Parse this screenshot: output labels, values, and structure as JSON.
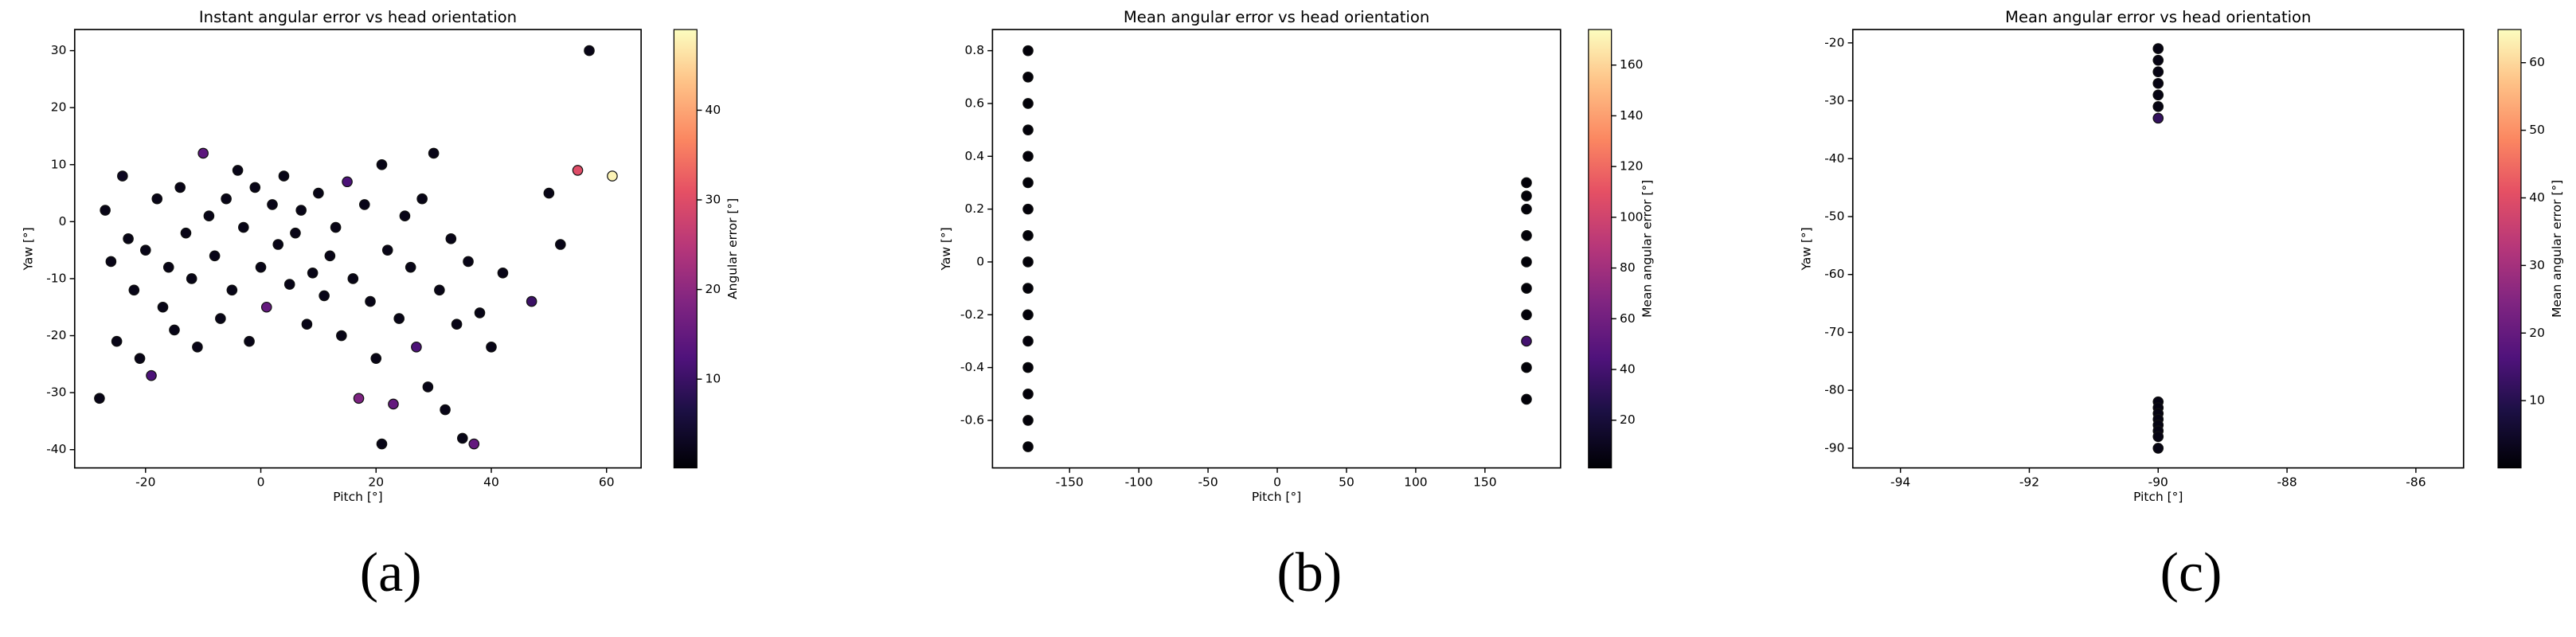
{
  "chart_data": [
    {
      "type": "scatter",
      "title": "Instant angular error vs head orientation",
      "x_label": "Pitch [°]",
      "y_label": "Yaw [°]",
      "colorbar_label": "Angular error [°]",
      "panel_label": "(a)",
      "colormap": "magma",
      "x": [
        -28,
        -27,
        -26,
        -25,
        -24,
        -23,
        -22,
        -21,
        -20,
        -19,
        -18,
        -17,
        -16,
        -15,
        -14,
        -13,
        -12,
        -11,
        -10,
        -9,
        -8,
        -7,
        -6,
        -5,
        -4,
        -3,
        -2,
        -1,
        0,
        1,
        2,
        3,
        4,
        5,
        6,
        7,
        8,
        9,
        10,
        11,
        12,
        13,
        14,
        15,
        16,
        17,
        18,
        19,
        20,
        21,
        21,
        22,
        23,
        24,
        25,
        26,
        27,
        28,
        29,
        30,
        31,
        32,
        33,
        34,
        35,
        36,
        37,
        38,
        40,
        42,
        47,
        50,
        52,
        55,
        57,
        61
      ],
      "y": [
        -31,
        2,
        -7,
        -21,
        8,
        -3,
        -12,
        -24,
        -5,
        -27,
        4,
        -15,
        -8,
        -19,
        6,
        -2,
        -10,
        -22,
        12,
        1,
        -6,
        -17,
        4,
        -12,
        9,
        -1,
        -21,
        6,
        -8,
        -15,
        3,
        -4,
        8,
        -11,
        -2,
        2,
        -18,
        -9,
        5,
        -13,
        -6,
        -1,
        -20,
        7,
        -10,
        -31,
        3,
        -14,
        -24,
        -39,
        10,
        -5,
        -32,
        -17,
        1,
        -8,
        -22,
        4,
        -29,
        12,
        -12,
        -33,
        -3,
        -18,
        -38,
        -7,
        -39,
        -16,
        -22,
        -9,
        -14,
        5,
        -4,
        9,
        30,
        8
      ],
      "c": [
        2,
        2,
        2,
        2,
        3,
        2,
        2,
        2,
        2,
        12,
        2,
        2,
        2,
        2,
        2,
        2,
        2,
        2,
        14,
        2,
        2,
        2,
        2,
        2,
        2,
        2,
        2,
        2,
        2,
        15,
        2,
        2,
        2,
        2,
        2,
        2,
        2,
        2,
        2,
        2,
        2,
        2,
        2,
        12,
        2,
        18,
        2,
        2,
        2,
        2,
        2,
        2,
        15,
        2,
        2,
        2,
        12,
        2,
        2,
        2,
        2,
        2,
        2,
        2,
        2,
        2,
        15,
        2,
        2,
        2,
        10,
        2,
        2,
        30,
        2,
        48
      ],
      "xlim": [
        -32.3,
        66
      ],
      "ylim": [
        -43.2,
        33.7
      ],
      "clim": [
        0.1,
        49
      ],
      "xticks": [
        -20,
        0,
        20,
        40,
        60
      ],
      "yticks": [
        -40,
        -30,
        -20,
        -10,
        0,
        10,
        20,
        30
      ],
      "cticks": [
        10,
        20,
        30,
        40
      ]
    },
    {
      "type": "scatter",
      "title": "Mean angular error vs head orientation",
      "x_label": "Pitch [°]",
      "y_label": "Yaw [°]",
      "colorbar_label": "Mean angular error [°]",
      "panel_label": "(b)",
      "colormap": "magma",
      "x": [
        -180,
        -180,
        -180,
        -180,
        -180,
        -180,
        -180,
        -180,
        -180,
        -180,
        -180,
        -180,
        -180,
        -180,
        -180,
        -180,
        180,
        180,
        180,
        180,
        180,
        180,
        180,
        180,
        180,
        180
      ],
      "y": [
        -0.7,
        -0.6,
        -0.5,
        -0.4,
        -0.3,
        -0.2,
        -0.1,
        0,
        0.1,
        0.2,
        0.3,
        0.4,
        0.5,
        0.6,
        0.7,
        0.8,
        -0.52,
        -0.4,
        -0.3,
        -0.2,
        -0.1,
        0,
        0.1,
        0.2,
        0.25,
        0.3
      ],
      "c": [
        3,
        3,
        3,
        3,
        3,
        3,
        3,
        3,
        3,
        3,
        3,
        3,
        3,
        3,
        3,
        3,
        3,
        3,
        40,
        3,
        3,
        3,
        3,
        3,
        3,
        3
      ],
      "xlim": [
        -205.7,
        204.6
      ],
      "ylim": [
        -0.78,
        0.88
      ],
      "clim": [
        1.2,
        174
      ],
      "xticks": [
        -150,
        -100,
        -50,
        0,
        50,
        100,
        150
      ],
      "yticks": [
        -0.6,
        -0.4,
        -0.2,
        0.0,
        0.2,
        0.4,
        0.6,
        0.8
      ],
      "cticks": [
        20,
        40,
        60,
        80,
        100,
        120,
        140,
        160
      ]
    },
    {
      "type": "scatter",
      "title": "Mean angular error vs head orientation",
      "x_label": "Pitch [°]",
      "y_label": "Yaw [°]",
      "colorbar_label": "Mean angular error [°]",
      "panel_label": "(c)",
      "colormap": "magma",
      "x": [
        -90,
        -90,
        -90,
        -90,
        -90,
        -90,
        -90,
        -90,
        -90,
        -90,
        -90,
        -90,
        -90,
        -90,
        -90
      ],
      "y": [
        -21,
        -23,
        -25,
        -27,
        -29,
        -31,
        -33,
        -82,
        -83,
        -84,
        -85,
        -86,
        -87,
        -88,
        -90
      ],
      "c": [
        2,
        2,
        2,
        2,
        2,
        2,
        12,
        2,
        2,
        2,
        2,
        2,
        2,
        2,
        2
      ],
      "xlim": [
        -94.74,
        -85.26
      ],
      "ylim": [
        -93.4,
        -17.7
      ],
      "clim": [
        0.05,
        64.9
      ],
      "xticks": [
        -94,
        -92,
        -90,
        -88,
        -86
      ],
      "yticks": [
        -90,
        -80,
        -70,
        -60,
        -50,
        -40,
        -30,
        -20
      ],
      "cticks": [
        10,
        20,
        30,
        40,
        50,
        60
      ]
    }
  ]
}
